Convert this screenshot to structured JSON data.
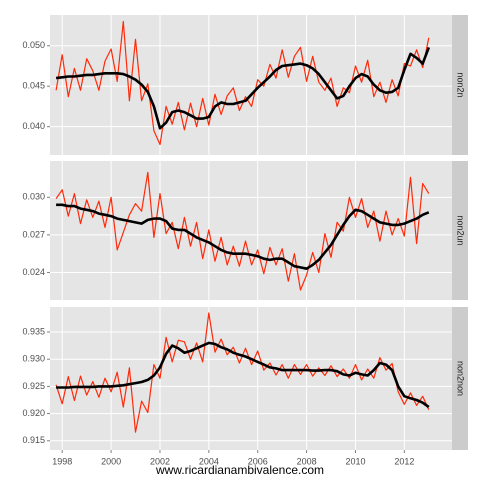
{
  "caption": "www.ricardianambivalence.com",
  "chart_data": [
    {
      "type": "line",
      "facet": "non2n",
      "x": [
        1997.75,
        1998,
        1998.25,
        1998.5,
        1998.75,
        1999,
        1999.25,
        1999.5,
        1999.75,
        2000,
        2000.25,
        2000.5,
        2000.75,
        2001,
        2001.25,
        2001.5,
        2001.75,
        2002,
        2002.25,
        2002.5,
        2002.75,
        2003,
        2003.25,
        2003.5,
        2003.75,
        2004,
        2004.25,
        2004.5,
        2004.75,
        2005,
        2005.25,
        2005.5,
        2005.75,
        2006,
        2006.25,
        2006.5,
        2006.75,
        2007,
        2007.25,
        2007.5,
        2007.75,
        2008,
        2008.25,
        2008.5,
        2008.75,
        2009,
        2009.25,
        2009.5,
        2009.75,
        2010,
        2010.25,
        2010.5,
        2010.75,
        2011,
        2011.25,
        2011.5,
        2011.75,
        2012,
        2012.25,
        2012.5,
        2012.75,
        2013
      ],
      "xlim": [
        1997.5,
        2013.95
      ],
      "xticks": [
        1998,
        2000,
        2002,
        2004,
        2006,
        2008,
        2010,
        2012
      ],
      "ylim": [
        0.0365,
        0.0538
      ],
      "yticks": [
        {
          "value": 0.04,
          "label": "0.040"
        },
        0.045,
        {
          "value": 0.05,
          "label": "0.050"
        }
      ],
      "grid": true,
      "series": [
        {
          "color": "#ff2a0a",
          "values": [
            0.0445,
            0.0489,
            0.0437,
            0.0472,
            0.0445,
            0.0484,
            0.0469,
            0.0445,
            0.0481,
            0.0496,
            0.0456,
            0.053,
            0.0432,
            0.0508,
            0.0432,
            0.0453,
            0.0395,
            0.0378,
            0.0425,
            0.0403,
            0.043,
            0.0396,
            0.0429,
            0.04,
            0.0435,
            0.0402,
            0.044,
            0.0415,
            0.0438,
            0.0448,
            0.042,
            0.0437,
            0.0425,
            0.0458,
            0.045,
            0.0477,
            0.046,
            0.0495,
            0.0461,
            0.0487,
            0.0498,
            0.0456,
            0.0487,
            0.0455,
            0.0445,
            0.046,
            0.0425,
            0.0448,
            0.0442,
            0.0475,
            0.0455,
            0.0482,
            0.0437,
            0.0455,
            0.043,
            0.0458,
            0.0438,
            0.0478,
            0.0475,
            0.0495,
            0.0473,
            0.051
          ]
        },
        {
          "color": "#000000",
          "values": [
            0.046,
            0.0461,
            0.0462,
            0.0462,
            0.0463,
            0.0464,
            0.0464,
            0.0465,
            0.0466,
            0.0466,
            0.0466,
            0.0465,
            0.0462,
            0.0458,
            0.0452,
            0.0443,
            0.0425,
            0.0398,
            0.0405,
            0.0418,
            0.042,
            0.0418,
            0.0414,
            0.041,
            0.041,
            0.0412,
            0.0425,
            0.043,
            0.0428,
            0.0428,
            0.043,
            0.0432,
            0.044,
            0.0448,
            0.0455,
            0.0462,
            0.047,
            0.0475,
            0.0476,
            0.0477,
            0.0478,
            0.0476,
            0.0472,
            0.0465,
            0.0455,
            0.0445,
            0.0435,
            0.0438,
            0.045,
            0.046,
            0.0465,
            0.0462,
            0.0452,
            0.0445,
            0.0442,
            0.0443,
            0.0448,
            0.047,
            0.049,
            0.0485,
            0.0478,
            0.0498
          ]
        }
      ]
    },
    {
      "type": "line",
      "facet": "non2un",
      "x": [
        1997.75,
        1998,
        1998.25,
        1998.5,
        1998.75,
        1999,
        1999.25,
        1999.5,
        1999.75,
        2000,
        2000.25,
        2000.5,
        2000.75,
        2001,
        2001.25,
        2001.5,
        2001.75,
        2002,
        2002.25,
        2002.5,
        2002.75,
        2003,
        2003.25,
        2003.5,
        2003.75,
        2004,
        2004.25,
        2004.5,
        2004.75,
        2005,
        2005.25,
        2005.5,
        2005.75,
        2006,
        2006.25,
        2006.5,
        2006.75,
        2007,
        2007.25,
        2007.5,
        2007.75,
        2008,
        2008.25,
        2008.5,
        2008.75,
        2009,
        2009.25,
        2009.5,
        2009.75,
        2010,
        2010.25,
        2010.5,
        2010.75,
        2011,
        2011.25,
        2011.5,
        2011.75,
        2012,
        2012.25,
        2012.5,
        2012.75,
        2013
      ],
      "xlim": [
        1997.5,
        2013.95
      ],
      "xticks": [
        1998,
        2000,
        2002,
        2004,
        2006,
        2008,
        2010,
        2012
      ],
      "ylim": [
        0.0218,
        0.0329
      ],
      "yticks": [
        0.024,
        0.027,
        {
          "value": 0.03,
          "label": "0.030"
        }
      ],
      "grid": true,
      "series": [
        {
          "color": "#ff2a0a",
          "values": [
            0.0299,
            0.0306,
            0.0285,
            0.0303,
            0.0279,
            0.0298,
            0.0284,
            0.0297,
            0.0276,
            0.03,
            0.0258,
            0.0272,
            0.0286,
            0.0295,
            0.0289,
            0.032,
            0.0268,
            0.0303,
            0.0271,
            0.028,
            0.0259,
            0.0284,
            0.0261,
            0.028,
            0.0251,
            0.0274,
            0.0249,
            0.0268,
            0.0246,
            0.0261,
            0.0245,
            0.0265,
            0.0246,
            0.0258,
            0.0239,
            0.026,
            0.0246,
            0.0259,
            0.0233,
            0.0255,
            0.0226,
            0.0238,
            0.0256,
            0.024,
            0.0271,
            0.0252,
            0.028,
            0.0273,
            0.03,
            0.0284,
            0.0299,
            0.0276,
            0.0289,
            0.0265,
            0.0289,
            0.027,
            0.0283,
            0.0269,
            0.0316,
            0.0263,
            0.0311,
            0.0303
          ]
        },
        {
          "color": "#000000",
          "values": [
            0.0294,
            0.0294,
            0.0293,
            0.0293,
            0.0291,
            0.029,
            0.0289,
            0.0287,
            0.0286,
            0.0285,
            0.0283,
            0.0282,
            0.0281,
            0.028,
            0.0279,
            0.0282,
            0.0283,
            0.0283,
            0.0281,
            0.0275,
            0.0274,
            0.0274,
            0.0271,
            0.0268,
            0.0266,
            0.0264,
            0.0261,
            0.0258,
            0.0256,
            0.0255,
            0.0255,
            0.0255,
            0.0254,
            0.0253,
            0.0251,
            0.025,
            0.0251,
            0.0251,
            0.0248,
            0.0245,
            0.0244,
            0.0243,
            0.0246,
            0.025,
            0.0256,
            0.0262,
            0.027,
            0.0278,
            0.0285,
            0.029,
            0.0289,
            0.0286,
            0.0283,
            0.028,
            0.0279,
            0.0278,
            0.0278,
            0.0279,
            0.0281,
            0.0283,
            0.0286,
            0.0288
          ]
        }
      ]
    },
    {
      "type": "line",
      "facet": "non2non",
      "x": [
        1997.75,
        1998,
        1998.25,
        1998.5,
        1998.75,
        1999,
        1999.25,
        1999.5,
        1999.75,
        2000,
        2000.25,
        2000.5,
        2000.75,
        2001,
        2001.25,
        2001.5,
        2001.75,
        2002,
        2002.25,
        2002.5,
        2002.75,
        2003,
        2003.25,
        2003.5,
        2003.75,
        2004,
        2004.25,
        2004.5,
        2004.75,
        2005,
        2005.25,
        2005.5,
        2005.75,
        2006,
        2006.25,
        2006.5,
        2006.75,
        2007,
        2007.25,
        2007.5,
        2007.75,
        2008,
        2008.25,
        2008.5,
        2008.75,
        2009,
        2009.25,
        2009.5,
        2009.75,
        2010,
        2010.25,
        2010.5,
        2010.75,
        2011,
        2011.25,
        2011.5,
        2011.75,
        2012,
        2012.25,
        2012.5,
        2012.75,
        2013
      ],
      "xlim": [
        1997.5,
        2013.95
      ],
      "xticks": [
        1998,
        2000,
        2002,
        2004,
        2006,
        2008,
        2010,
        2012
      ],
      "ylim": [
        0.9133,
        0.9396
      ],
      "yticks": [
        0.915,
        {
          "value": 0.92,
          "label": "0.920"
        },
        0.925,
        {
          "value": 0.93,
          "label": "0.930"
        },
        0.935
      ],
      "grid": true,
      "series": [
        {
          "color": "#ff2a0a",
          "values": [
            0.9253,
            0.9218,
            0.9268,
            0.9224,
            0.9269,
            0.9234,
            0.9259,
            0.923,
            0.9265,
            0.924,
            0.9276,
            0.9212,
            0.9284,
            0.9166,
            0.9223,
            0.9202,
            0.929,
            0.9265,
            0.934,
            0.9295,
            0.9335,
            0.9332,
            0.93,
            0.933,
            0.9295,
            0.9385,
            0.9313,
            0.9337,
            0.9308,
            0.9322,
            0.9293,
            0.932,
            0.929,
            0.9315,
            0.928,
            0.9293,
            0.9271,
            0.929,
            0.9265,
            0.929,
            0.9272,
            0.929,
            0.9269,
            0.9284,
            0.927,
            0.9288,
            0.9268,
            0.9282,
            0.9265,
            0.929,
            0.9262,
            0.9282,
            0.9265,
            0.9303,
            0.928,
            0.9292,
            0.924,
            0.9217,
            0.9238,
            0.9215,
            0.9232,
            0.9207
          ]
        },
        {
          "color": "#000000",
          "values": [
            0.9248,
            0.9248,
            0.9248,
            0.9249,
            0.9249,
            0.9249,
            0.9249,
            0.925,
            0.925,
            0.925,
            0.9251,
            0.9252,
            0.9254,
            0.9256,
            0.9258,
            0.9262,
            0.927,
            0.9285,
            0.931,
            0.9325,
            0.932,
            0.9312,
            0.9315,
            0.932,
            0.9325,
            0.933,
            0.9328,
            0.9322,
            0.9318,
            0.9312,
            0.9308,
            0.9305,
            0.93,
            0.9295,
            0.929,
            0.9285,
            0.9283,
            0.928,
            0.928,
            0.928,
            0.928,
            0.928,
            0.9279,
            0.9279,
            0.928,
            0.928,
            0.9278,
            0.9272,
            0.927,
            0.9275,
            0.9272,
            0.927,
            0.928,
            0.9293,
            0.929,
            0.928,
            0.925,
            0.9232,
            0.9228,
            0.9225,
            0.922,
            0.9212
          ]
        }
      ]
    }
  ]
}
